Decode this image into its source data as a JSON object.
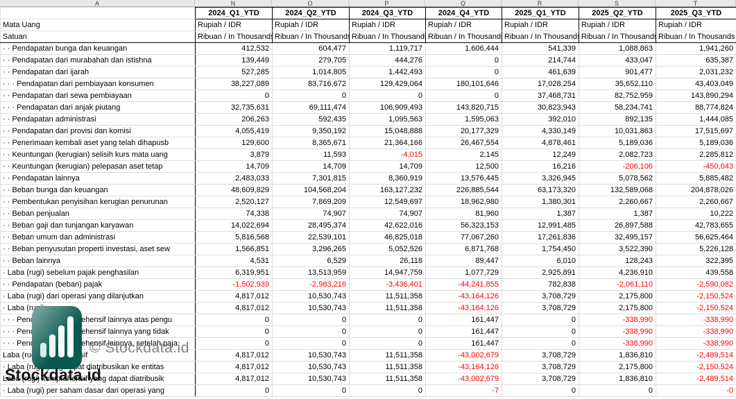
{
  "watermark": {
    "copyright": "© Stockdata.id",
    "brand": "Stockdata.id",
    "logo_color": "#0b5a50"
  },
  "colors": {
    "negative_text": "#ff0000",
    "grid_line": "#dcdcdc",
    "strong_border": "#000000",
    "letters_bg": "#e9e9e9"
  },
  "spreadsheet": {
    "column_letters": [
      "A",
      "N",
      "O",
      "P",
      "Q",
      "R",
      "S",
      "T"
    ],
    "columns": [
      "2024_Q1_YTD",
      "2024_Q2_YTD",
      "2024_Q3_YTD",
      "2024_Q4_YTD",
      "2025_Q1_YTD",
      "2025_Q2_YTD",
      "2025_Q3_YTD"
    ],
    "meta_rows": [
      {
        "label": "Mata Uang",
        "values": [
          "Rupiah / IDR",
          "Rupiah / IDR",
          "Rupiah / IDR",
          "Rupiah / IDR",
          "Rupiah / IDR",
          "Rupiah / IDR",
          "Rupiah / IDR"
        ]
      },
      {
        "label": "Satuan",
        "values": [
          "Ribuan / In Thousands",
          "Ribuan / In Thousands",
          "Ribuan / In Thousands",
          "Ribuan / In Thousands",
          "Ribuan / In Thousands",
          "Ribuan / In Thousands",
          "Ribuan / In Thousands"
        ]
      }
    ],
    "rows": [
      {
        "label": "· · Pendapatan bunga dan keuangan",
        "values": [
          "412,532",
          "604,477",
          "1,119,717",
          "1,606,444",
          "541,339",
          "1,088,863",
          "1,941,260"
        ]
      },
      {
        "label": "· · Pendapatan dari murabahah dan istishna",
        "values": [
          "139,449",
          "279,705",
          "444,276",
          "0",
          "214,744",
          "433,047",
          "635,387"
        ]
      },
      {
        "label": "· · Pendapatan dari ijarah",
        "values": [
          "527,285",
          "1,014,805",
          "1,442,493",
          "0",
          "461,639",
          "901,477",
          "2,031,232"
        ]
      },
      {
        "label": "· · · Pendapatan dari pembiayaan konsumen",
        "values": [
          "38,227,089",
          "83,716,672",
          "129,429,064",
          "180,101,646",
          "17,028,254",
          "35,652,110",
          "43,403,049"
        ]
      },
      {
        "label": "· · Pendapatan dari sewa pembiayaan",
        "values": [
          "0",
          "0",
          "0",
          "0",
          "37,468,731",
          "82,752,959",
          "143,890,294"
        ]
      },
      {
        "label": "· · · Pendapatan dari anjak piutang",
        "values": [
          "32,735,631",
          "69,111,474",
          "106,909,493",
          "143,820,715",
          "30,823,943",
          "58,234,741",
          "88,774,824"
        ]
      },
      {
        "label": "· · Pendapatan administrasi",
        "values": [
          "206,263",
          "592,435",
          "1,095,563",
          "1,595,063",
          "392,010",
          "892,135",
          "1,444,085"
        ]
      },
      {
        "label": "· · Pendapatan dari provisi dan komisi",
        "values": [
          "4,055,419",
          "9,350,192",
          "15,048,888",
          "20,177,329",
          "4,330,149",
          "10,031,863",
          "17,515,697"
        ]
      },
      {
        "label": "· · Penerimaan kembali aset yang telah dihapusb",
        "values": [
          "129,600",
          "8,365,671",
          "21,364,166",
          "26,467,554",
          "4,878,461",
          "5,189,036",
          "5,189,036"
        ]
      },
      {
        "label": "· · Keuntungan (kerugian) selisih kurs mata uang",
        "values": [
          "3,879",
          "11,593",
          "-4,015",
          "2,145",
          "12,249",
          "2,082,723",
          "2,285,812"
        ]
      },
      {
        "label": "· · Keuntungan (kerugian) pelepasan aset tetap",
        "values": [
          "14,709",
          "14,709",
          "14,709",
          "12,500",
          "16,216",
          "-206,106",
          "-450,043"
        ]
      },
      {
        "label": "· · Pendapatan lainnya",
        "values": [
          "2,483,033",
          "7,301,815",
          "8,360,919",
          "13,576,445",
          "3,326,945",
          "5,078,562",
          "5,885,482"
        ]
      },
      {
        "label": "· · Beban bunga dan keuangan",
        "values": [
          "48,609,829",
          "104,568,204",
          "163,127,232",
          "226,885,544",
          "63,173,320",
          "132,589,068",
          "204,878,026"
        ]
      },
      {
        "label": "· · Pembentukan penyisihan kerugian penurunan",
        "values": [
          "2,520,127",
          "7,869,209",
          "12,549,697",
          "18,962,980",
          "1,380,301",
          "2,260,667",
          "2,260,667"
        ]
      },
      {
        "label": "· · Beban penjualan",
        "values": [
          "74,338",
          "74,907",
          "74,907",
          "81,960",
          "1,387",
          "1,387",
          "10,222"
        ]
      },
      {
        "label": "· · Beban gaji dan tunjangan karyawan",
        "values": [
          "14,022,694",
          "28,495,374",
          "42,622,016",
          "56,323,153",
          "12,991,485",
          "26,897,588",
          "42,783,655"
        ]
      },
      {
        "label": "· · Beban umum dan administrasi",
        "values": [
          "5,816,568",
          "22,539,101",
          "46,825,018",
          "77,067,260",
          "17,261,836",
          "32,495,157",
          "56,625,464"
        ]
      },
      {
        "label": "· · Beban penyusutan properti investasi, aset sew",
        "values": [
          "1,566,851",
          "3,296,265",
          "5,052,526",
          "6,871,768",
          "1,754,450",
          "3,522,390",
          "5,226,128"
        ]
      },
      {
        "label": "· · Beban lainnya",
        "values": [
          "4,531",
          "6,529",
          "26,118",
          "89,447",
          "6,010",
          "128,243",
          "322,395"
        ]
      },
      {
        "label": "· Laba (rugi) sebelum pajak penghasilan",
        "values": [
          "6,319,951",
          "13,513,959",
          "14,947,759",
          "1,077,729",
          "2,925,891",
          "4,236,910",
          "439,558"
        ]
      },
      {
        "label": "· · Pendapatan (beban) pajak",
        "values": [
          "-1,502,939",
          "-2,983,216",
          "-3,436,401",
          "-44,241,855",
          "782,838",
          "-2,061,110",
          "-2,590,082"
        ]
      },
      {
        "label": "· Laba (rugi) dari operasi yang dilanjutkan",
        "values": [
          "4,817,012",
          "10,530,743",
          "11,511,358",
          "-43,164,126",
          "3,708,729",
          "2,175,800",
          "-2,150,524"
        ]
      },
      {
        "label": "· Laba (rugi)",
        "values": [
          "4,817,012",
          "10,530,743",
          "11,511,358",
          "-43,164,126",
          "3,708,729",
          "2,175,800",
          "-2,150,524"
        ]
      },
      {
        "label": "· · · Pendapatan komprehensif lainnya atas pengu",
        "values": [
          "0",
          "0",
          "0",
          "161,447",
          "0",
          "-338,990",
          "-338,990"
        ]
      },
      {
        "label": "· · · Pendapatan komprehensif lainnya yang tidak",
        "values": [
          "0",
          "0",
          "0",
          "161,447",
          "0",
          "-338,990",
          "-338,990"
        ]
      },
      {
        "label": "· · · Pendapatan komprehensif lainnya, setelah paja",
        "values": [
          "0",
          "0",
          "0",
          "161,447",
          "0",
          "-338,990",
          "-338,990"
        ]
      },
      {
        "label": "Laba (rugi) komprehensif",
        "values": [
          "4,817,012",
          "10,530,743",
          "11,511,358",
          "-43,002,679",
          "3,708,729",
          "1,836,810",
          "-2,489,514"
        ]
      },
      {
        "label": "· Laba (rugi) yang dapat diatribusikan ke entitas",
        "values": [
          "4,817,012",
          "10,530,743",
          "11,511,358",
          "-43,164,126",
          "3,708,729",
          "2,175,800",
          "-2,150,524"
        ]
      },
      {
        "label": "Laba (rugi) komprehensif yang dapat diatribusik",
        "values": [
          "4,817,012",
          "10,530,743",
          "11,511,358",
          "-43,002,679",
          "3,708,729",
          "1,836,810",
          "-2,489,514"
        ]
      },
      {
        "label": "· Laba (rugi) per saham dasar dari operasi yang",
        "values": [
          "0",
          "0",
          "0",
          "-7",
          "0",
          "0",
          "-0"
        ]
      }
    ]
  }
}
